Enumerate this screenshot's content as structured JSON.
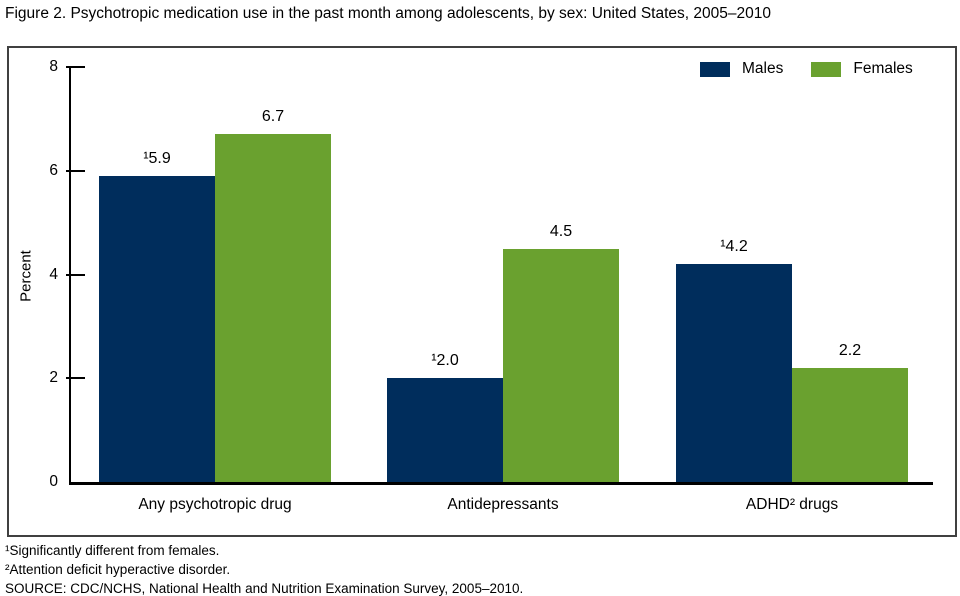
{
  "title": "Figure 2. Psychotropic medication use in the past month among adolescents, by sex: United States, 2005–2010",
  "colors": {
    "males": "#002D5C",
    "females": "#6AA12F",
    "frame": "#404040",
    "axis": "#000000"
  },
  "legend": {
    "items": [
      {
        "label": "Males",
        "color_key": "males"
      },
      {
        "label": "Females",
        "color_key": "females"
      }
    ]
  },
  "chart_data": {
    "type": "bar",
    "categories": [
      "Any psychotropic drug",
      "Antidepressants",
      "ADHD² drugs"
    ],
    "series": [
      {
        "name": "Males",
        "color_key": "males",
        "values": [
          5.9,
          2.0,
          4.2
        ],
        "labels": [
          "¹5.9",
          "¹2.0",
          "¹4.2"
        ]
      },
      {
        "name": "Females",
        "color_key": "females",
        "values": [
          6.7,
          4.5,
          2.2
        ],
        "labels": [
          "6.7",
          "4.5",
          "2.2"
        ]
      }
    ],
    "title": "",
    "xlabel": "",
    "ylabel": "Percent",
    "ylim": [
      0,
      8
    ],
    "yticks": [
      0,
      2,
      4,
      6,
      8
    ],
    "grid": false,
    "legend_position": "top-right"
  },
  "footnotes": [
    "¹Significantly different from females.",
    "²Attention deficit hyperactive disorder.",
    "SOURCE: CDC/NCHS, National Health and Nutrition Examination Survey, 2005–2010."
  ]
}
